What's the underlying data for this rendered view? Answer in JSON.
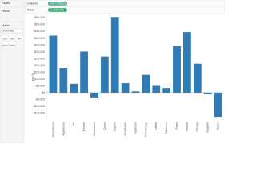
{
  "ui": {
    "side_panel": {
      "pages": "Pages",
      "filters": "Filters",
      "marks": "Marks",
      "marks_type": "Automatic",
      "marks_buttons": [
        "Color",
        "Size",
        "Text",
        "Detail",
        "Tooltip"
      ]
    },
    "shelves": {
      "columns_label": "Columns",
      "columns_pill": "Sub-Category",
      "rows_label": "Rows",
      "rows_pill": "SUM(Profit)"
    }
  },
  "chart_data": {
    "type": "bar",
    "y_axis_label": "Profit",
    "categories": [
      "Accessories",
      "Appliances",
      "Art",
      "Binders",
      "Bookcases",
      "Chairs",
      "Copiers",
      "Envelopes",
      "Fasteners",
      "Furnishings",
      "Labels",
      "Machines",
      "Paper",
      "Phones",
      "Storage",
      "Supplies",
      "Tables"
    ],
    "values": [
      41937,
      18138,
      6528,
      30222,
      -3473,
      26590,
      55618,
      6964,
      950,
      13059,
      5546,
      3385,
      34054,
      44516,
      21279,
      -1189,
      -17725
    ],
    "color": "#2f7bb6",
    "ylim": [
      -20000,
      57500
    ],
    "yticks": [
      {
        "value": -15000,
        "label": "-$15,000"
      },
      {
        "value": -10000,
        "label": "-$10,000"
      },
      {
        "value": -5000,
        "label": "-$5,000"
      },
      {
        "value": 0,
        "label": "$0"
      },
      {
        "value": 5000,
        "label": "$5,000"
      },
      {
        "value": 10000,
        "label": "$10,000"
      },
      {
        "value": 15000,
        "label": "$15,000"
      },
      {
        "value": 20000,
        "label": "$20,000"
      },
      {
        "value": 25000,
        "label": "$25,000"
      },
      {
        "value": 30000,
        "label": "$30,000"
      },
      {
        "value": 35000,
        "label": "$35,000"
      },
      {
        "value": 40000,
        "label": "$40,000"
      },
      {
        "value": 45000,
        "label": "$45,000"
      },
      {
        "value": 50000,
        "label": "$50,000"
      },
      {
        "value": 55000,
        "label": "$55,000"
      }
    ],
    "grid": false
  }
}
